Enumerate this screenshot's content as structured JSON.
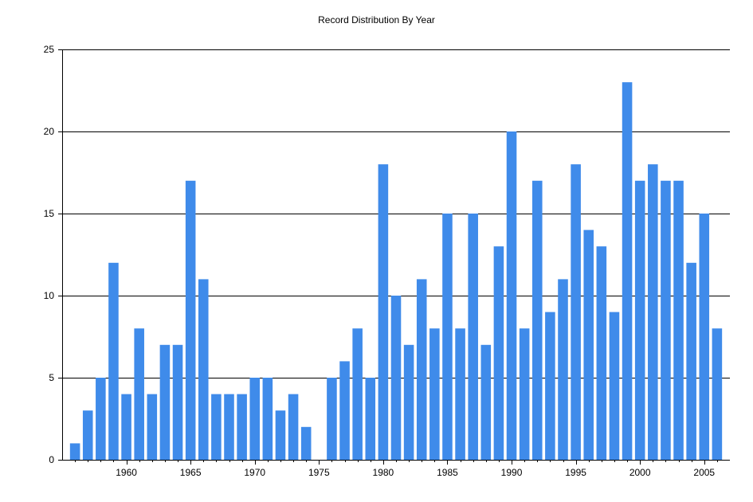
{
  "chart_data": {
    "type": "bar",
    "title": "Record Distribution By Year",
    "xlabel": "",
    "ylabel": "",
    "color": "#3f8bea",
    "grid": true,
    "ylim": [
      0,
      25
    ],
    "yticks": [
      0,
      5,
      10,
      15,
      20,
      25
    ],
    "xlim": [
      1955,
      2007
    ],
    "xticks": [
      1960,
      1965,
      1970,
      1975,
      1980,
      1985,
      1990,
      1995,
      2000,
      2005
    ],
    "x": [
      1956,
      1957,
      1958,
      1959,
      1960,
      1961,
      1962,
      1963,
      1964,
      1965,
      1966,
      1967,
      1968,
      1969,
      1970,
      1971,
      1972,
      1973,
      1974,
      1975,
      1976,
      1977,
      1978,
      1979,
      1980,
      1981,
      1982,
      1983,
      1984,
      1985,
      1986,
      1987,
      1988,
      1989,
      1990,
      1991,
      1992,
      1993,
      1994,
      1995,
      1996,
      1997,
      1998,
      1999,
      2000,
      2001,
      2002,
      2003,
      2004,
      2005,
      2006
    ],
    "values": [
      1,
      3,
      5,
      12,
      4,
      8,
      4,
      7,
      7,
      17,
      11,
      4,
      4,
      4,
      5,
      5,
      3,
      4,
      2,
      0,
      5,
      6,
      8,
      5,
      18,
      10,
      7,
      11,
      8,
      15,
      8,
      15,
      7,
      13,
      20,
      8,
      17,
      9,
      11,
      18,
      14,
      13,
      9,
      23,
      17,
      18,
      17,
      17,
      12,
      15,
      8
    ]
  }
}
